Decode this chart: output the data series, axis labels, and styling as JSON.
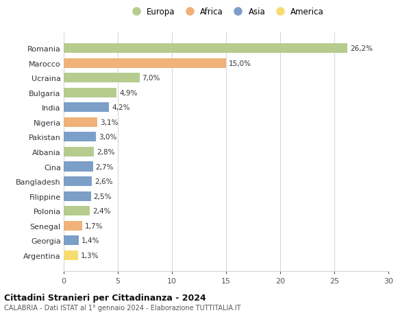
{
  "countries": [
    "Romania",
    "Marocco",
    "Ucraina",
    "Bulgaria",
    "India",
    "Nigeria",
    "Pakistan",
    "Albania",
    "Cina",
    "Bangladesh",
    "Filippine",
    "Polonia",
    "Senegal",
    "Georgia",
    "Argentina"
  ],
  "values": [
    26.2,
    15.0,
    7.0,
    4.9,
    4.2,
    3.1,
    3.0,
    2.8,
    2.7,
    2.6,
    2.5,
    2.4,
    1.7,
    1.4,
    1.3
  ],
  "labels": [
    "26,2%",
    "15,0%",
    "7,0%",
    "4,9%",
    "4,2%",
    "3,1%",
    "3,0%",
    "2,8%",
    "2,7%",
    "2,6%",
    "2,5%",
    "2,4%",
    "1,7%",
    "1,4%",
    "1,3%"
  ],
  "continent": [
    "Europa",
    "Africa",
    "Europa",
    "Europa",
    "Asia",
    "Africa",
    "Asia",
    "Europa",
    "Asia",
    "Asia",
    "Asia",
    "Europa",
    "Africa",
    "Asia",
    "America"
  ],
  "colors": {
    "Europa": "#b5cc8e",
    "Africa": "#f0b27a",
    "Asia": "#7b9fc7",
    "America": "#f7dc6f"
  },
  "xlim": [
    0,
    30
  ],
  "xticks": [
    0,
    5,
    10,
    15,
    20,
    25,
    30
  ],
  "title": "Cittadini Stranieri per Cittadinanza - 2024",
  "subtitle": "CALABRIA - Dati ISTAT al 1° gennaio 2024 - Elaborazione TUTTITALIA.IT",
  "background_color": "#ffffff",
  "grid_color": "#cccccc",
  "legend_order": [
    "Europa",
    "Africa",
    "Asia",
    "America"
  ]
}
